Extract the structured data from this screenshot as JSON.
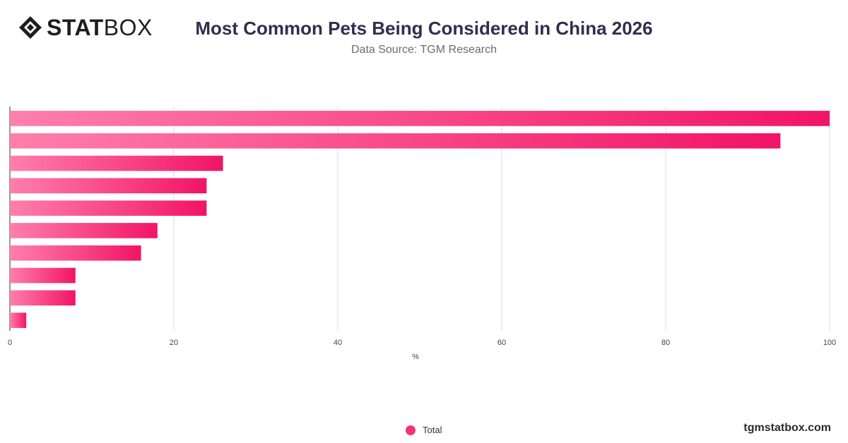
{
  "brand": {
    "logo_bold": "STAT",
    "logo_light": "BOX"
  },
  "header": {
    "title": "Most Common Pets Being Considered in China 2026",
    "subtitle": "Data Source: TGM Research"
  },
  "footer": {
    "site": "tgmstatbox.com"
  },
  "colors": {
    "bar_start": "#ff7fab",
    "bar_end": "#f21466",
    "grid": "#dddddd",
    "axis": "#555555"
  },
  "chart_data": {
    "type": "bar",
    "orientation": "horizontal",
    "categories": [
      "",
      "",
      "",
      "",
      "",
      "",
      "",
      "",
      "",
      ""
    ],
    "series": [
      {
        "name": "Total",
        "values": [
          100,
          94,
          26,
          24,
          24,
          18,
          16,
          8,
          8,
          2
        ]
      }
    ],
    "xlabel": "%",
    "xlim": [
      0,
      100
    ],
    "xticks": [
      "0",
      "20",
      "40",
      "60",
      "80",
      "100"
    ],
    "grid": true,
    "legend": "bottom-center"
  }
}
